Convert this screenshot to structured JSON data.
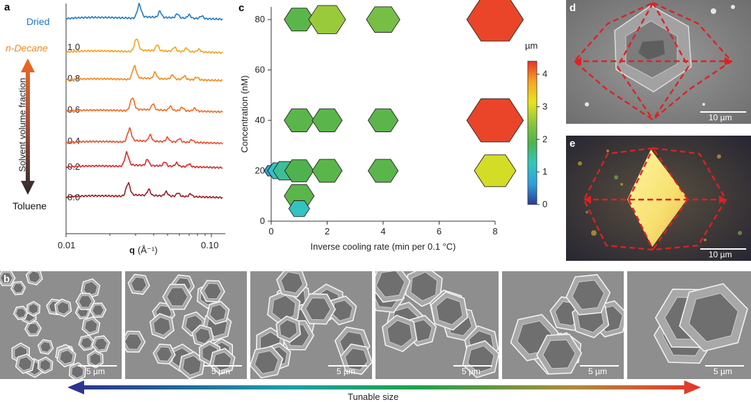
{
  "panels": {
    "a": {
      "label": "a",
      "trace_labels": [
        "Dried",
        "n-Decane",
        "1.0",
        "0.8",
        "0.6",
        "0.4",
        "0.2",
        "0.0",
        "Toluene"
      ],
      "trace_colors": [
        "#1f78c1",
        "#f5a21c",
        "#f28a1c",
        "#ef6b25",
        "#e84d2a",
        "#d9262b",
        "#9b1b24",
        "#4a0f14"
      ],
      "axis_title": "Solvent volume fraction",
      "xlabel_q": "q",
      "xlabel_units": "(Å⁻¹)",
      "xtick_left": "0.01",
      "xtick_right": "0.10"
    },
    "b": {
      "label": "b",
      "scalebars": [
        "5 µm",
        "5 µm",
        "5 µm",
        "5 µm",
        "5 µm",
        "5 µm"
      ]
    },
    "c": {
      "label": "c"
    },
    "d": {
      "label": "d",
      "scalebar": "10 µm"
    },
    "e": {
      "label": "e",
      "scalebar": "10 µm"
    },
    "bottom_arrow_label": "Tunable size"
  },
  "chart_data": {
    "type": "scatter",
    "xlabel": "Inverse cooling rate (min per 0.1 °C)",
    "ylabel": "Concentration (nM)",
    "xlim": [
      0,
      8
    ],
    "ylim": [
      0,
      85
    ],
    "xticks": [
      "0",
      "2",
      "4",
      "6",
      "8"
    ],
    "yticks": [
      "0",
      "20",
      "40",
      "60",
      "80"
    ],
    "colorbar": {
      "title": "µm",
      "range": [
        0,
        4.4
      ],
      "ticks": [
        "0",
        "1",
        "2",
        "3",
        "4"
      ],
      "colors": [
        "#2b3a97",
        "#2fa0d8",
        "#33c6c0",
        "#4fb24e",
        "#8cc63f",
        "#e8e41e",
        "#f5a623",
        "#e8332a"
      ]
    },
    "points": [
      {
        "x": 1,
        "y": 80,
        "size": 2.0
      },
      {
        "x": 2,
        "y": 80,
        "size": 2.6
      },
      {
        "x": 4,
        "y": 80,
        "size": 2.3
      },
      {
        "x": 8,
        "y": 80,
        "size": 4.3
      },
      {
        "x": 1,
        "y": 40,
        "size": 2.0
      },
      {
        "x": 2,
        "y": 40,
        "size": 2.0
      },
      {
        "x": 4,
        "y": 40,
        "size": 2.0
      },
      {
        "x": 8,
        "y": 40,
        "size": 4.3
      },
      {
        "x": 0,
        "y": 20,
        "size": 0.6
      },
      {
        "x": 0.25,
        "y": 20,
        "size": 1.2
      },
      {
        "x": 0.5,
        "y": 20,
        "size": 1.5
      },
      {
        "x": 1,
        "y": 20,
        "size": 1.9
      },
      {
        "x": 2,
        "y": 20,
        "size": 2.0
      },
      {
        "x": 4,
        "y": 20,
        "size": 2.0
      },
      {
        "x": 8,
        "y": 20,
        "size": 3.0
      },
      {
        "x": 1,
        "y": 10,
        "size": 2.0
      },
      {
        "x": 1,
        "y": 5,
        "size": 1.2
      }
    ]
  }
}
